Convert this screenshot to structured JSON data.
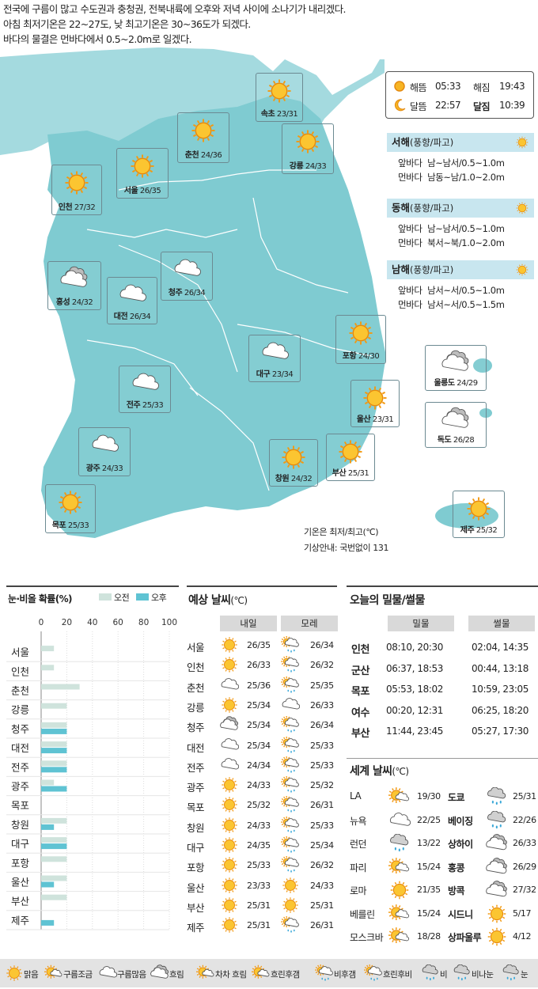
{
  "headline": [
    "전국에 구름이 많고 수도권과 충청권, 전북내륙에 오후와 저녁 사이에 소나기가 내리겠다.",
    "아침 최저기온은 22~27도, 낮 최고기온은 30~36도가 되겠다.",
    "바다의 물결은 먼바다에서 0.5~2.0m로 일겠다."
  ],
  "map_cities": [
    {
      "name": "속초",
      "temp": "23/31",
      "icon": "sun"
    },
    {
      "name": "춘천",
      "temp": "24/36",
      "icon": "sun"
    },
    {
      "name": "강릉",
      "temp": "24/33",
      "icon": "sun"
    },
    {
      "name": "서울",
      "temp": "26/35",
      "icon": "sun"
    },
    {
      "name": "인천",
      "temp": "27/32",
      "icon": "sun"
    },
    {
      "name": "홍성",
      "temp": "24/32",
      "icon": "cloud-dark"
    },
    {
      "name": "대전",
      "temp": "26/34",
      "icon": "cloud"
    },
    {
      "name": "청주",
      "temp": "26/34",
      "icon": "cloud"
    },
    {
      "name": "포항",
      "temp": "24/30",
      "icon": "sun"
    },
    {
      "name": "대구",
      "temp": "23/34",
      "icon": "cloud"
    },
    {
      "name": "울릉도",
      "temp": "24/29",
      "icon": "cloud-dark"
    },
    {
      "name": "전주",
      "temp": "25/33",
      "icon": "cloud"
    },
    {
      "name": "울산",
      "temp": "23/31",
      "icon": "sun"
    },
    {
      "name": "독도",
      "temp": "26/28",
      "icon": "cloud-dark"
    },
    {
      "name": "광주",
      "temp": "24/33",
      "icon": "cloud"
    },
    {
      "name": "창원",
      "temp": "24/32",
      "icon": "sun"
    },
    {
      "name": "부산",
      "temp": "25/31",
      "icon": "sun"
    },
    {
      "name": "목포",
      "temp": "25/33",
      "icon": "sun"
    },
    {
      "name": "제주",
      "temp": "25/32",
      "icon": "sun"
    }
  ],
  "sun_moon": {
    "sunrise_label": "해뜸",
    "sunrise": "05:33",
    "sunset_label": "해짐",
    "sunset": "19:43",
    "moonrise_label": "달뜸",
    "moonrise": "22:57",
    "moonset_label": "달짐",
    "moonset": "10:39"
  },
  "seas": [
    {
      "name": "서해",
      "sub": "(풍향/파고)",
      "rows": [
        {
          "k": "앞바다",
          "v": "남~남서/0.5~1.0m"
        },
        {
          "k": "먼바다",
          "v": "남동~남/1.0~2.0m"
        }
      ]
    },
    {
      "name": "동해",
      "sub": "(풍향/파고)",
      "rows": [
        {
          "k": "앞바다",
          "v": "남~남서/0.5~1.0m"
        },
        {
          "k": "먼바다",
          "v": "북서~북/1.0~2.0m"
        }
      ]
    },
    {
      "name": "남해",
      "sub": "(풍향/파고)",
      "rows": [
        {
          "k": "앞바다",
          "v": "남서~서/0.5~1.0m"
        },
        {
          "k": "먼바다",
          "v": "남서~서/0.5~1.5m"
        }
      ]
    }
  ],
  "notes": {
    "temp_note": "기온은 최저/최고(℃)",
    "info_note": "기상안내: 국번없이 131"
  },
  "chart_data": {
    "type": "bar",
    "title": "눈·비올 확률(%)",
    "categories": [
      "서울",
      "인천",
      "춘천",
      "강릉",
      "청주",
      "대전",
      "전주",
      "광주",
      "목포",
      "창원",
      "대구",
      "포항",
      "울산",
      "부산",
      "제주"
    ],
    "series": [
      {
        "name": "오전",
        "values": [
          10,
          10,
          30,
          20,
          20,
          20,
          20,
          10,
          0,
          20,
          20,
          20,
          20,
          20,
          0
        ]
      },
      {
        "name": "오후",
        "values": [
          0,
          0,
          0,
          0,
          20,
          20,
          20,
          20,
          0,
          10,
          20,
          0,
          10,
          0,
          10
        ]
      }
    ],
    "xticks": [
      "0",
      "20",
      "40",
      "60",
      "80",
      "100"
    ],
    "xlim": [
      0,
      100
    ],
    "legend": "top-right",
    "colors": {
      "오전": "#cfe3dc",
      "오후": "#5fc3d3"
    }
  },
  "forecast": {
    "title": "예상 날씨",
    "unit": "(℃)",
    "col1": "내일",
    "col2": "모레",
    "rows": [
      {
        "city": "서울",
        "d1": "26/35",
        "i1": "sun",
        "d2": "26/34",
        "i2": "shower"
      },
      {
        "city": "인천",
        "d1": "26/33",
        "i1": "sun",
        "d2": "26/32",
        "i2": "shower"
      },
      {
        "city": "춘천",
        "d1": "25/36",
        "i1": "cloud",
        "d2": "25/35",
        "i2": "shower"
      },
      {
        "city": "강릉",
        "d1": "25/34",
        "i1": "sun",
        "d2": "26/33",
        "i2": "cloud"
      },
      {
        "city": "청주",
        "d1": "25/34",
        "i1": "cloud-dark",
        "d2": "26/34",
        "i2": "shower"
      },
      {
        "city": "대전",
        "d1": "25/34",
        "i1": "cloud",
        "d2": "25/33",
        "i2": "shower"
      },
      {
        "city": "전주",
        "d1": "24/34",
        "i1": "cloud",
        "d2": "25/33",
        "i2": "shower"
      },
      {
        "city": "광주",
        "d1": "24/33",
        "i1": "sun",
        "d2": "25/32",
        "i2": "shower"
      },
      {
        "city": "목포",
        "d1": "25/32",
        "i1": "sun",
        "d2": "26/31",
        "i2": "shower"
      },
      {
        "city": "창원",
        "d1": "24/33",
        "i1": "sun",
        "d2": "25/33",
        "i2": "shower"
      },
      {
        "city": "대구",
        "d1": "24/35",
        "i1": "sun",
        "d2": "25/34",
        "i2": "shower"
      },
      {
        "city": "포항",
        "d1": "25/33",
        "i1": "sun",
        "d2": "26/32",
        "i2": "shower"
      },
      {
        "city": "울산",
        "d1": "23/33",
        "i1": "sun",
        "d2": "24/33",
        "i2": "sun"
      },
      {
        "city": "부산",
        "d1": "25/31",
        "i1": "sun",
        "d2": "25/31",
        "i2": "sun"
      },
      {
        "city": "제주",
        "d1": "25/31",
        "i1": "sun",
        "d2": "26/31",
        "i2": "shower"
      }
    ]
  },
  "tides": {
    "title": "오늘의 밀물/썰물",
    "col1": "밀물",
    "col2": "썰물",
    "rows": [
      {
        "city": "인천",
        "high": "08:10, 20:30",
        "low": "02:04, 14:35"
      },
      {
        "city": "군산",
        "high": "06:37, 18:53",
        "low": "00:44, 13:18"
      },
      {
        "city": "목포",
        "high": "05:53, 18:02",
        "low": "10:59, 23:05"
      },
      {
        "city": "여수",
        "high": "00:20, 12:31",
        "low": "06:25, 18:20"
      },
      {
        "city": "부산",
        "high": "11:44, 23:45",
        "low": "05:27, 17:30"
      }
    ]
  },
  "world": {
    "title": "세계 날씨",
    "unit": "(℃)",
    "rows": [
      {
        "c1": "LA",
        "i1": "sun-cloud",
        "t1": "19/30",
        "c2": "도쿄",
        "i2": "rain",
        "t2": "25/31"
      },
      {
        "c1": "뉴욕",
        "i1": "cloud",
        "t1": "22/25",
        "c2": "베이징",
        "i2": "rain",
        "t2": "22/26"
      },
      {
        "c1": "런던",
        "i1": "rain",
        "t1": "13/22",
        "c2": "상하이",
        "i2": "cloud-dark",
        "t2": "26/33"
      },
      {
        "c1": "파리",
        "i1": "sun-cloud",
        "t1": "15/24",
        "c2": "홍콩",
        "i2": "cloud-dark",
        "t2": "26/29"
      },
      {
        "c1": "로마",
        "i1": "sun",
        "t1": "21/35",
        "c2": "방콕",
        "i2": "cloud-dark",
        "t2": "27/32"
      },
      {
        "c1": "베를린",
        "i1": "sun-cloud",
        "t1": "15/24",
        "c2": "시드니",
        "i2": "sun",
        "t2": "5/17"
      },
      {
        "c1": "모스크바",
        "i1": "sun-cloud",
        "t1": "18/28",
        "c2": "상파울루",
        "i2": "sun",
        "t2": "4/12"
      }
    ]
  },
  "legend_items": [
    "맑음",
    "구름조금",
    "구름많음",
    "흐림",
    "차차 흐림",
    "흐린후갬",
    "비후갬",
    "흐린후비",
    "비",
    "비나눈",
    "눈"
  ],
  "colors": {
    "sea": "#ffffff",
    "land": "#7fcbd1",
    "sun": "#f7b524",
    "cloud": "#ffffff",
    "section_bg": "#c8e6ef",
    "header_bg": "#d9d9d9"
  }
}
